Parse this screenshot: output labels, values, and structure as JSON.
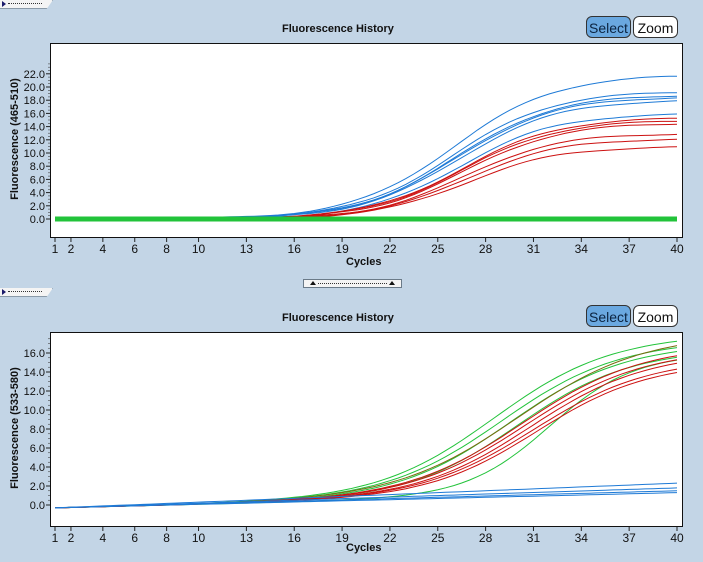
{
  "panels": [
    {
      "title": "Fluorescence History",
      "buttons": {
        "select_label": "Select",
        "zoom_label": "Zoom"
      }
    },
    {
      "title": "Fluorescence History",
      "buttons": {
        "select_label": "Select",
        "zoom_label": "Zoom"
      }
    }
  ],
  "colors": {
    "blue": "#1e7ad6",
    "red": "#cc1111",
    "green": "#22c33a",
    "olive": "#7a6a10",
    "select_bg": "#6aa8e0",
    "background": "#c3d5e6"
  },
  "chart_data": [
    {
      "type": "line",
      "title": "Fluorescence History",
      "xlabel": "Cycles",
      "ylabel": "Fluorescence (465-510)",
      "xlim": [
        1,
        40
      ],
      "ylim": [
        -2.0,
        24.0
      ],
      "xticks": [
        "1",
        "2",
        "4",
        "6",
        "8",
        "10",
        "13",
        "16",
        "19",
        "22",
        "25",
        "28",
        "31",
        "34",
        "37",
        "40"
      ],
      "yticks": [
        "0.0",
        "2.0",
        "4.0",
        "6.0",
        "8.0",
        "10.0",
        "12.0",
        "14.0",
        "16.0",
        "18.0",
        "20.0",
        "22.0"
      ],
      "grid": false,
      "series": [
        {
          "name": "blue-1",
          "color": "#1e7ad6",
          "plateau": 21.9,
          "midpoint": 26.0,
          "slope": 3.2
        },
        {
          "name": "blue-2",
          "color": "#1e7ad6",
          "plateau": 19.4,
          "midpoint": 26.0,
          "slope": 3.1
        },
        {
          "name": "blue-3",
          "color": "#1e7ad6",
          "plateau": 18.9,
          "midpoint": 26.2,
          "slope": 3.1
        },
        {
          "name": "blue-4",
          "color": "#1e7ad6",
          "plateau": 18.6,
          "midpoint": 26.2,
          "slope": 3.1
        },
        {
          "name": "blue-5",
          "color": "#1e7ad6",
          "plateau": 18.1,
          "midpoint": 26.3,
          "slope": 3.1
        },
        {
          "name": "blue-6",
          "color": "#1e7ad6",
          "plateau": 16.0,
          "midpoint": 26.4,
          "slope": 3.0
        },
        {
          "name": "red-1",
          "color": "#cc1111",
          "plateau": 15.4,
          "midpoint": 26.6,
          "slope": 3.0
        },
        {
          "name": "red-2",
          "color": "#cc1111",
          "plateau": 15.0,
          "midpoint": 26.6,
          "slope": 3.0
        },
        {
          "name": "red-3",
          "color": "#cc1111",
          "plateau": 14.6,
          "midpoint": 26.7,
          "slope": 3.0
        },
        {
          "name": "red-4",
          "color": "#cc1111",
          "plateau": 13.0,
          "midpoint": 26.7,
          "slope": 2.9
        },
        {
          "name": "red-5",
          "color": "#cc1111",
          "plateau": 12.2,
          "midpoint": 26.8,
          "slope": 2.9
        },
        {
          "name": "red-6",
          "color": "#cc1111",
          "plateau": 11.0,
          "midpoint": 26.8,
          "slope": 2.9
        },
        {
          "name": "green-flat",
          "color": "#22c33a",
          "plateau": 0.0,
          "midpoint": 30,
          "slope": 3.0
        }
      ]
    },
    {
      "type": "line",
      "title": "Fluorescence History",
      "xlabel": "Cycles",
      "ylabel": "Fluorescence (533-580)",
      "xlim": [
        1,
        40
      ],
      "ylim": [
        -2.0,
        18.0
      ],
      "xticks": [
        "1",
        "2",
        "4",
        "6",
        "8",
        "10",
        "13",
        "16",
        "19",
        "22",
        "25",
        "28",
        "31",
        "34",
        "37",
        "40"
      ],
      "yticks": [
        "0.0",
        "2.0",
        "4.0",
        "6.0",
        "8.0",
        "10.0",
        "12.0",
        "14.0",
        "16.0"
      ],
      "grid": false,
      "series": [
        {
          "name": "green-1",
          "color": "#22c33a",
          "plateau": 16.6,
          "midpoint": 28.5,
          "slope": 3.6
        },
        {
          "name": "green-2",
          "color": "#22c33a",
          "plateau": 16.0,
          "midpoint": 29.0,
          "slope": 3.6
        },
        {
          "name": "green-3",
          "color": "#22c33a",
          "plateau": 15.6,
          "midpoint": 29.5,
          "slope": 3.5
        },
        {
          "name": "green-4",
          "color": "#22c33a",
          "plateau": 15.0,
          "midpoint": 30.0,
          "slope": 3.4
        },
        {
          "name": "green-5",
          "color": "#22c33a",
          "plateau": 14.6,
          "midpoint": 32.0,
          "slope": 2.6
        },
        {
          "name": "olive-1",
          "color": "#7a6a10",
          "plateau": 16.6,
          "midpoint": 30.0,
          "slope": 3.8
        },
        {
          "name": "red-1",
          "color": "#cc1111",
          "plateau": 15.4,
          "midpoint": 30.3,
          "slope": 3.6
        },
        {
          "name": "red-2",
          "color": "#cc1111",
          "plateau": 15.0,
          "midpoint": 30.5,
          "slope": 3.6
        },
        {
          "name": "red-3",
          "color": "#cc1111",
          "plateau": 14.6,
          "midpoint": 30.8,
          "slope": 3.5
        },
        {
          "name": "red-4",
          "color": "#cc1111",
          "plateau": 14.0,
          "midpoint": 31.0,
          "slope": 3.5
        },
        {
          "name": "red-5",
          "color": "#cc1111",
          "plateau": 13.6,
          "midpoint": 31.2,
          "slope": 3.4
        },
        {
          "name": "blue-1",
          "color": "#1e7ad6",
          "linear_end": 2.3
        },
        {
          "name": "blue-2",
          "color": "#1e7ad6",
          "linear_end": 1.8
        },
        {
          "name": "blue-3",
          "color": "#1e7ad6",
          "linear_end": 1.5
        },
        {
          "name": "blue-4",
          "color": "#1e7ad6",
          "linear_end": 1.3
        }
      ]
    }
  ]
}
